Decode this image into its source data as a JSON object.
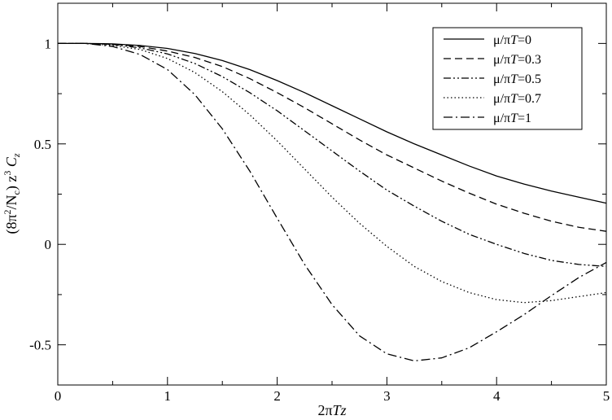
{
  "chart_data": {
    "type": "line",
    "title": "",
    "xlabel": {
      "prefix": "2π",
      "var1": "T",
      "var2": "z"
    },
    "ylabel": {
      "part1": "(8π",
      "sup2": "2",
      "part2": "/N",
      "subc": "c",
      "part3": ") z",
      "sup3": "3",
      "part4": " C",
      "subz": "z"
    },
    "xlim": [
      0,
      5
    ],
    "ylim": [
      -0.7,
      1.2
    ],
    "xticks": [
      0,
      1,
      2,
      3,
      4,
      5
    ],
    "xtick_labels": [
      "0",
      "1",
      "2",
      "3",
      "4",
      "5"
    ],
    "yticks": [
      -0.5,
      0,
      0.5,
      1
    ],
    "ytick_labels": [
      "-0.5",
      "0",
      "0.5",
      "1"
    ],
    "grid": false,
    "legend_position": "top-right",
    "x": [
      0,
      0.25,
      0.5,
      0.75,
      1.0,
      1.25,
      1.5,
      1.75,
      2.0,
      2.25,
      2.5,
      2.75,
      3.0,
      3.25,
      3.5,
      3.75,
      4.0,
      4.25,
      4.5,
      4.75,
      5.0
    ],
    "series": [
      {
        "name": "μ/πT=0",
        "legend_prefix": "μ/π",
        "legend_var": "T",
        "legend_suffix": "=0",
        "dash": "solid",
        "values": [
          1.0,
          1.0,
          0.998,
          0.99,
          0.975,
          0.95,
          0.915,
          0.87,
          0.815,
          0.755,
          0.69,
          0.625,
          0.56,
          0.5,
          0.445,
          0.39,
          0.34,
          0.3,
          0.265,
          0.235,
          0.205
        ]
      },
      {
        "name": "μ/πT=0.3",
        "legend_prefix": "μ/π",
        "legend_var": "T",
        "legend_suffix": "=0.3",
        "dash": "dashed",
        "values": [
          1.0,
          1.0,
          0.996,
          0.985,
          0.962,
          0.93,
          0.885,
          0.825,
          0.755,
          0.68,
          0.6,
          0.52,
          0.445,
          0.38,
          0.315,
          0.255,
          0.2,
          0.155,
          0.115,
          0.085,
          0.065
        ]
      },
      {
        "name": "μ/πT=0.5",
        "legend_prefix": "μ/π",
        "legend_var": "T",
        "legend_suffix": "=0.5",
        "dash": "dashdotdot",
        "values": [
          1.0,
          1.0,
          0.995,
          0.978,
          0.948,
          0.9,
          0.835,
          0.755,
          0.665,
          0.565,
          0.465,
          0.365,
          0.27,
          0.19,
          0.115,
          0.05,
          0.0,
          -0.045,
          -0.08,
          -0.1,
          -0.11
        ]
      },
      {
        "name": "μ/πT=0.7",
        "legend_prefix": "μ/π",
        "legend_var": "T",
        "legend_suffix": "=0.7",
        "dash": "dotted",
        "values": [
          1.0,
          1.0,
          0.99,
          0.97,
          0.925,
          0.855,
          0.76,
          0.645,
          0.515,
          0.375,
          0.235,
          0.105,
          -0.01,
          -0.11,
          -0.185,
          -0.24,
          -0.275,
          -0.29,
          -0.28,
          -0.26,
          -0.24
        ]
      },
      {
        "name": "μ/πT=1",
        "legend_prefix": "μ/π",
        "legend_var": "T",
        "legend_suffix": "=1",
        "dash": "dashdot",
        "values": [
          1.0,
          1.0,
          0.985,
          0.945,
          0.87,
          0.745,
          0.575,
          0.365,
          0.13,
          -0.1,
          -0.3,
          -0.455,
          -0.545,
          -0.58,
          -0.565,
          -0.515,
          -0.435,
          -0.35,
          -0.255,
          -0.165,
          -0.09
        ]
      }
    ]
  }
}
